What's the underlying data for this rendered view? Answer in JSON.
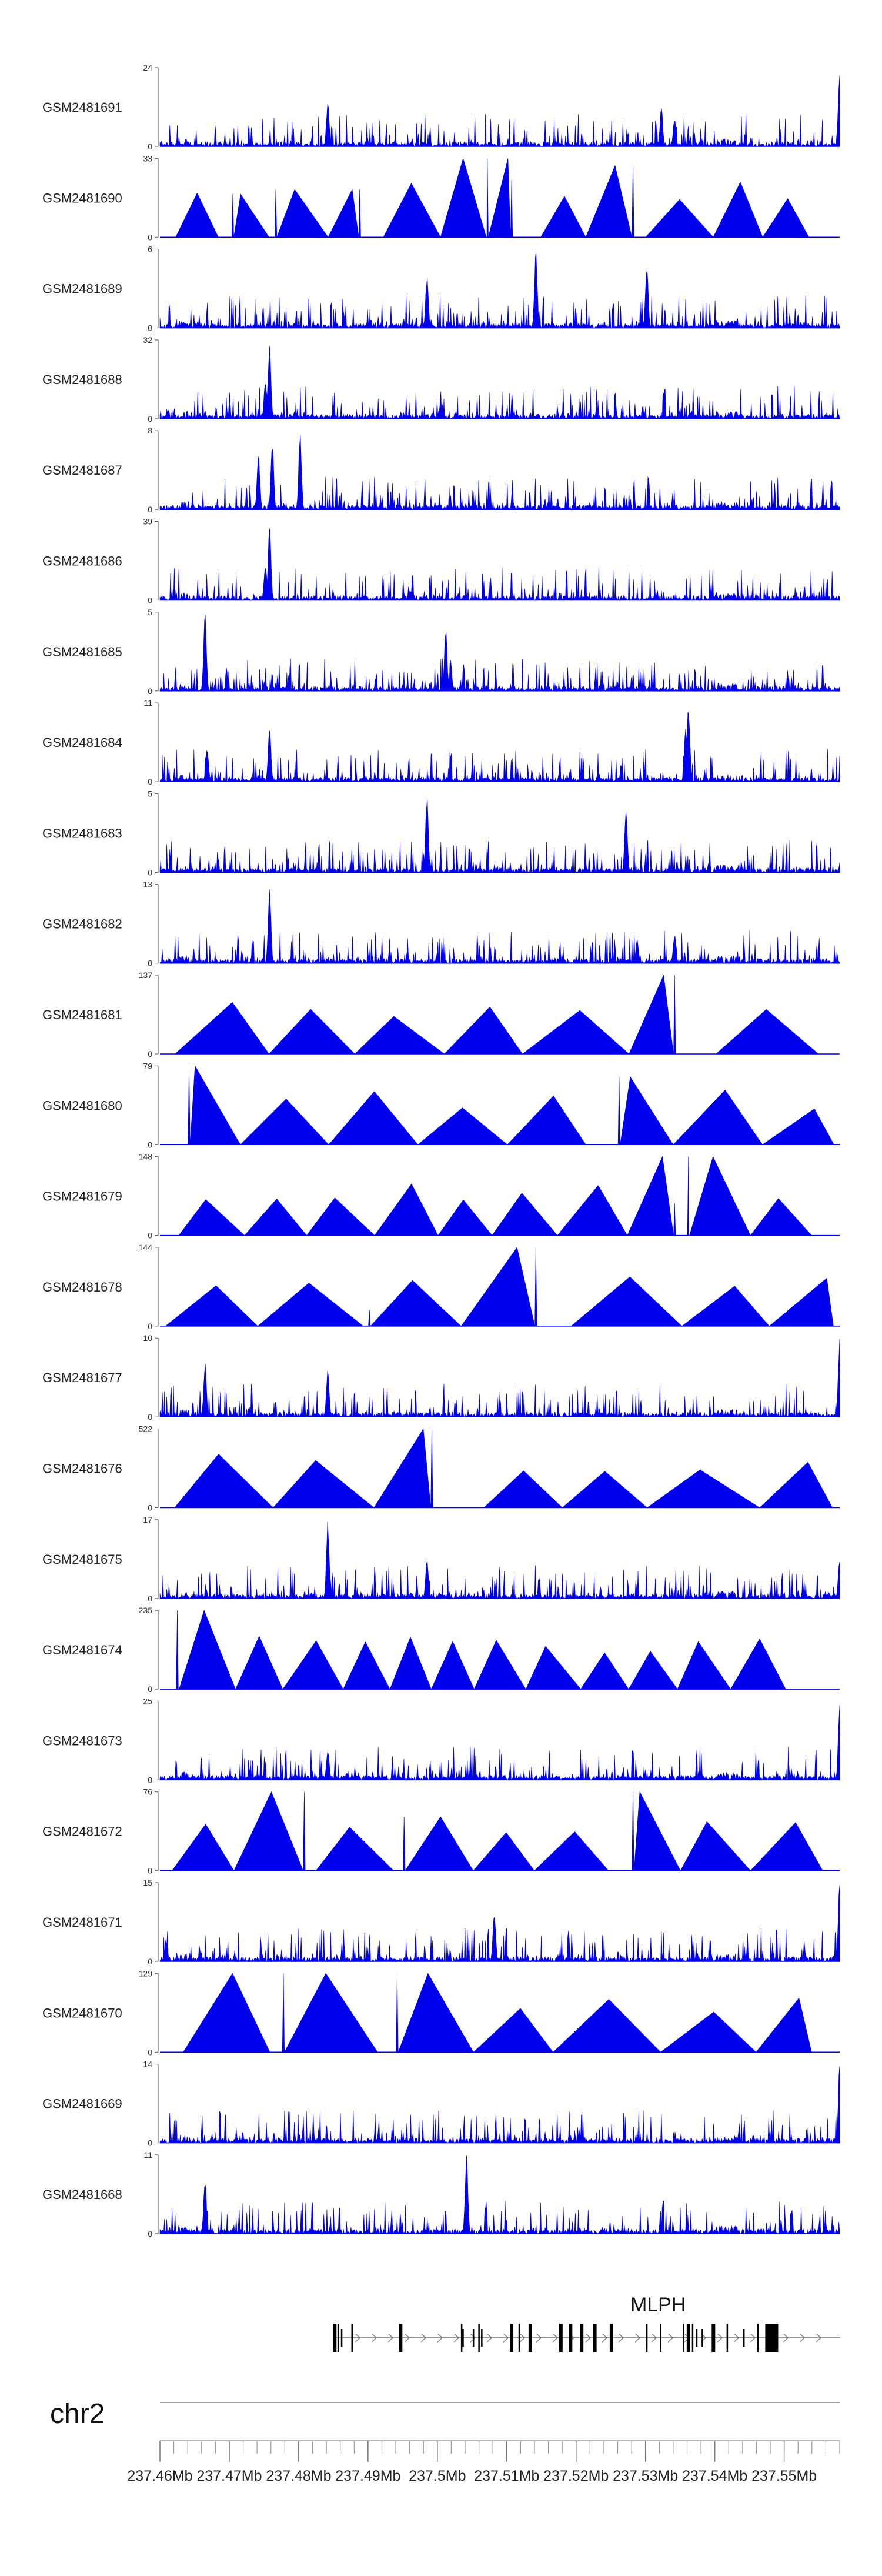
{
  "chart_data": {
    "type": "area",
    "chromosome": "chr2",
    "x_unit": "Mb",
    "xlim": [
      237.46,
      237.558
    ],
    "x_ticks": [
      237.46,
      237.47,
      237.48,
      237.49,
      237.5,
      237.51,
      237.52,
      237.53,
      237.54,
      237.55
    ],
    "x_tick_labels": [
      "237.46Mb",
      "237.47Mb",
      "237.48Mb",
      "237.49Mb",
      "237.5Mb",
      "237.51Mb",
      "237.52Mb",
      "237.53Mb",
      "237.54Mb",
      "237.55Mb"
    ],
    "colors": {
      "signal": "#0000ee",
      "axis": "#555555",
      "gene": "#000000"
    },
    "series": [
      {
        "name": "GSM2481691",
        "ymax": 24,
        "style": "dense",
        "peaks": [
          [
            237.4842,
            14
          ],
          [
            237.5323,
            12
          ],
          [
            237.5342,
            9
          ],
          [
            237.558,
            24
          ]
        ]
      },
      {
        "name": "GSM2481690",
        "ymax": 33,
        "style": "triangles",
        "peaks": [
          [
            237.4705,
            18
          ],
          [
            237.4767,
            20
          ],
          [
            237.4888,
            20
          ],
          [
            237.5072,
            33
          ],
          [
            237.5107,
            24
          ],
          [
            237.5282,
            30
          ]
        ]
      },
      {
        "name": "GSM2481689",
        "ymax": 6,
        "style": "dense",
        "peaks": [
          [
            237.5142,
            6
          ],
          [
            237.5302,
            5
          ],
          [
            237.4985,
            4
          ]
        ]
      },
      {
        "name": "GSM2481688",
        "ymax": 32,
        "style": "dense",
        "peaks": [
          [
            237.4758,
            32
          ],
          [
            237.4752,
            16
          ]
        ]
      },
      {
        "name": "GSM2481687",
        "ymax": 8,
        "style": "dense",
        "peaks": [
          [
            237.4742,
            6
          ],
          [
            237.4762,
            7
          ],
          [
            237.4802,
            8
          ]
        ]
      },
      {
        "name": "GSM2481686",
        "ymax": 39,
        "style": "dense",
        "peaks": [
          [
            237.4758,
            39
          ],
          [
            237.4752,
            18
          ]
        ]
      },
      {
        "name": "GSM2481685",
        "ymax": 5,
        "style": "dense",
        "peaks": [
          [
            237.4665,
            5
          ],
          [
            237.5012,
            4
          ]
        ]
      },
      {
        "name": "GSM2481684",
        "ymax": 11,
        "style": "dense",
        "peaks": [
          [
            237.4668,
            5
          ],
          [
            237.4758,
            8
          ],
          [
            237.5362,
            11
          ],
          [
            237.5358,
            8
          ]
        ]
      },
      {
        "name": "GSM2481683",
        "ymax": 5,
        "style": "dense",
        "peaks": [
          [
            237.4985,
            5
          ],
          [
            237.5272,
            4
          ]
        ]
      },
      {
        "name": "GSM2481682",
        "ymax": 13,
        "style": "dense",
        "peaks": [
          [
            237.4758,
            13
          ],
          [
            237.5342,
            5
          ],
          [
            237.5288,
            4
          ]
        ]
      },
      {
        "name": "GSM2481681",
        "ymax": 137,
        "style": "triangles",
        "peaks": [
          [
            237.5342,
            137
          ]
        ]
      },
      {
        "name": "GSM2481680",
        "ymax": 79,
        "style": "triangles",
        "peaks": [
          [
            237.5262,
            68
          ],
          [
            237.4642,
            79
          ]
        ]
      },
      {
        "name": "GSM2481679",
        "ymax": 148,
        "style": "triangles",
        "peaks": [
          [
            237.5362,
            148
          ],
          [
            237.5342,
            60
          ]
        ]
      },
      {
        "name": "GSM2481678",
        "ymax": 144,
        "style": "triangles",
        "peaks": [
          [
            237.5142,
            144
          ],
          [
            237.4902,
            30
          ]
        ]
      },
      {
        "name": "GSM2481677",
        "ymax": 10,
        "style": "dense",
        "peaks": [
          [
            237.4665,
            7
          ],
          [
            237.4842,
            6
          ],
          [
            237.558,
            10
          ]
        ]
      },
      {
        "name": "GSM2481676",
        "ymax": 522,
        "style": "triangles",
        "peaks": [
          [
            237.4992,
            522
          ]
        ]
      },
      {
        "name": "GSM2481675",
        "ymax": 17,
        "style": "dense",
        "peaks": [
          [
            237.4842,
            17
          ],
          [
            237.4985,
            9
          ],
          [
            237.558,
            9
          ]
        ]
      },
      {
        "name": "GSM2481674",
        "ymax": 235,
        "style": "triangles",
        "peaks": [
          [
            237.4625,
            235
          ]
        ]
      },
      {
        "name": "GSM2481673",
        "ymax": 25,
        "style": "dense",
        "peaks": [
          [
            237.4842,
            10
          ],
          [
            237.558,
            25
          ]
        ]
      },
      {
        "name": "GSM2481672",
        "ymax": 76,
        "style": "triangles",
        "peaks": [
          [
            237.4808,
            76
          ],
          [
            237.5282,
            76
          ],
          [
            237.4952,
            52
          ]
        ]
      },
      {
        "name": "GSM2481671",
        "ymax": 15,
        "style": "dense",
        "peaks": [
          [
            237.5082,
            10
          ],
          [
            237.558,
            15
          ]
        ]
      },
      {
        "name": "GSM2481670",
        "ymax": 129,
        "style": "triangles",
        "peaks": [
          [
            237.4778,
            129
          ],
          [
            237.4942,
            129
          ]
        ]
      },
      {
        "name": "GSM2481669",
        "ymax": 14,
        "style": "dense",
        "peaks": [
          [
            237.558,
            14
          ]
        ]
      },
      {
        "name": "GSM2481668",
        "ymax": 11,
        "style": "dense",
        "peaks": [
          [
            237.4665,
            8
          ],
          [
            237.5042,
            11
          ]
        ]
      }
    ],
    "gene": {
      "name": "MLPH",
      "strand": "+",
      "start": 237.4852,
      "end": 237.5581,
      "exons": [
        237.4852,
        237.4857,
        237.4862,
        237.4877,
        237.4947,
        237.5035,
        237.5037,
        237.5052,
        237.506,
        237.5064,
        237.5107,
        237.5118,
        237.5134,
        237.5178,
        237.5192,
        237.5208,
        237.5227,
        237.5251,
        237.5302,
        237.5322,
        237.5355,
        237.5362,
        237.5368,
        237.5374,
        237.5382,
        237.5398,
        237.5418,
        237.5442,
        237.5462,
        237.5482
      ]
    }
  }
}
